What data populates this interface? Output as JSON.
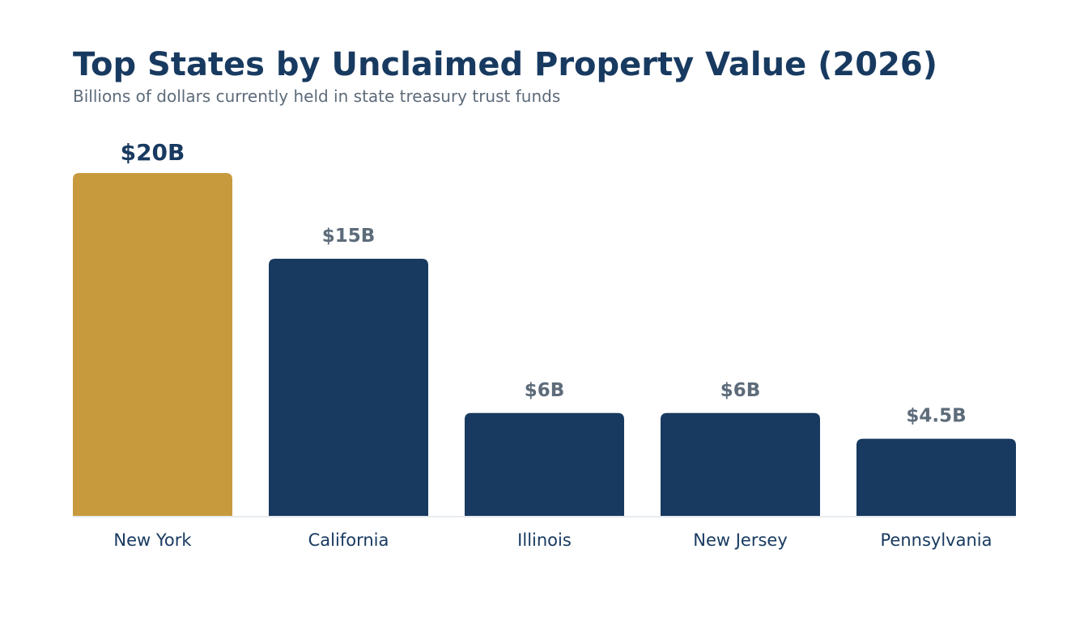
{
  "header": {
    "title": "Top States by Unclaimed Property Value (2026)",
    "subtitle": "Billions of dollars currently held in state treasury trust funds"
  },
  "colors": {
    "highlight": "#c89a3e",
    "bar": "#183a60",
    "title": "#183a60",
    "subtitle": "#5d6b7a",
    "highlight_label": "#183a60",
    "value_label": "#5d6b7a",
    "category_label": "#183a60",
    "axis_line": "#dfe3e8"
  },
  "chart_data": {
    "type": "bar",
    "title": "Top States by Unclaimed Property Value (2026)",
    "subtitle": "Billions of dollars currently held in state treasury trust funds",
    "categories": [
      "New York",
      "California",
      "Illinois",
      "New Jersey",
      "Pennsylvania"
    ],
    "values": [
      20,
      15,
      6,
      6,
      4.5
    ],
    "value_labels": [
      "$20B",
      "$15B",
      "$6B",
      "$6B",
      "$4.5B"
    ],
    "highlighted": "New York",
    "xlabel": "",
    "ylabel": "",
    "ylim": [
      0,
      20
    ],
    "grid": false,
    "legend": "none"
  }
}
